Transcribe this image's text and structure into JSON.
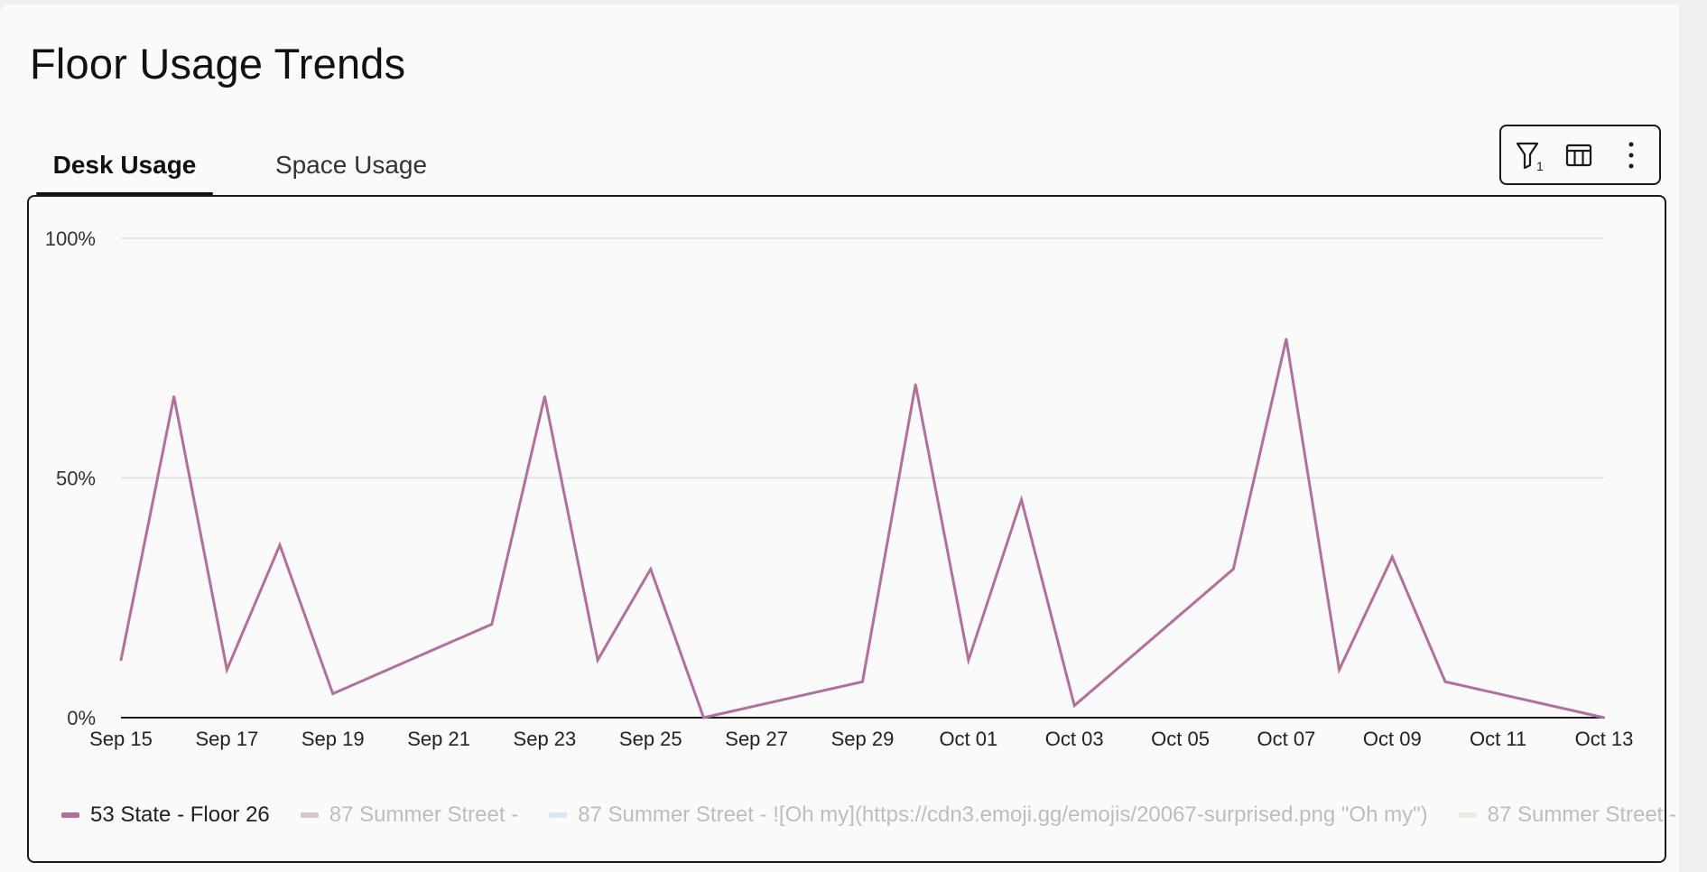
{
  "page": {
    "title": "Floor Usage Trends"
  },
  "tabs": [
    {
      "label": "Desk Usage",
      "active": true
    },
    {
      "label": "Space Usage",
      "active": false
    }
  ],
  "toolbar": {
    "filter": {
      "icon": "filter-icon",
      "badge": "1"
    },
    "columns": {
      "icon": "columns-icon"
    },
    "more": {
      "icon": "more-vertical-icon"
    }
  },
  "colors": {
    "series_active": "#b36f9c",
    "series_inactive_2": "#d8c3cf",
    "series_inactive_3": "#dbe6f6",
    "series_inactive_4": "#ecece2",
    "grid": "#dddddd",
    "axis": "#1a1a1a"
  },
  "chart_data": {
    "type": "line",
    "yticks": [
      "100%",
      "50%",
      "0%"
    ],
    "ylim": [
      0,
      100
    ],
    "xtick_labels": [
      "Sep 15",
      "Sep 17",
      "Sep 19",
      "Sep 21",
      "Sep 23",
      "Sep 25",
      "Sep 27",
      "Sep 29",
      "Oct 01",
      "Oct 03",
      "Oct 05",
      "Oct 07",
      "Oct 09",
      "Oct 11",
      "Oct 13"
    ],
    "x": [
      "Sep 15",
      "Sep 16",
      "Sep 17",
      "Sep 18",
      "Sep 19",
      "Sep 22",
      "Sep 23",
      "Sep 24",
      "Sep 25",
      "Sep 26",
      "Sep 29",
      "Sep 30",
      "Oct 01",
      "Oct 02",
      "Oct 03",
      "Oct 06",
      "Oct 07",
      "Oct 08",
      "Oct 09",
      "Oct 10",
      "Oct 13"
    ],
    "series": [
      {
        "name": "53 State - Floor 26",
        "visible": true,
        "values": [
          12,
          67,
          10,
          36,
          5,
          19.5,
          67,
          12,
          31,
          0,
          7.5,
          69.5,
          12,
          45.5,
          2.5,
          31,
          79,
          10,
          33.5,
          7.5,
          0
        ]
      }
    ],
    "legend": {
      "placement": "bottom-left",
      "items": [
        {
          "label": "53 State - Floor 26",
          "active": true
        },
        {
          "label": "87 Summer Street -",
          "active": false
        },
        {
          "label": "87 Summer Street - ![Oh my](https://cdn3.emoji.gg/emojis/20067-surprised.png \"Oh my\")",
          "active": false
        },
        {
          "label": "87 Summer Street -",
          "active": false
        }
      ]
    },
    "grid": true
  }
}
